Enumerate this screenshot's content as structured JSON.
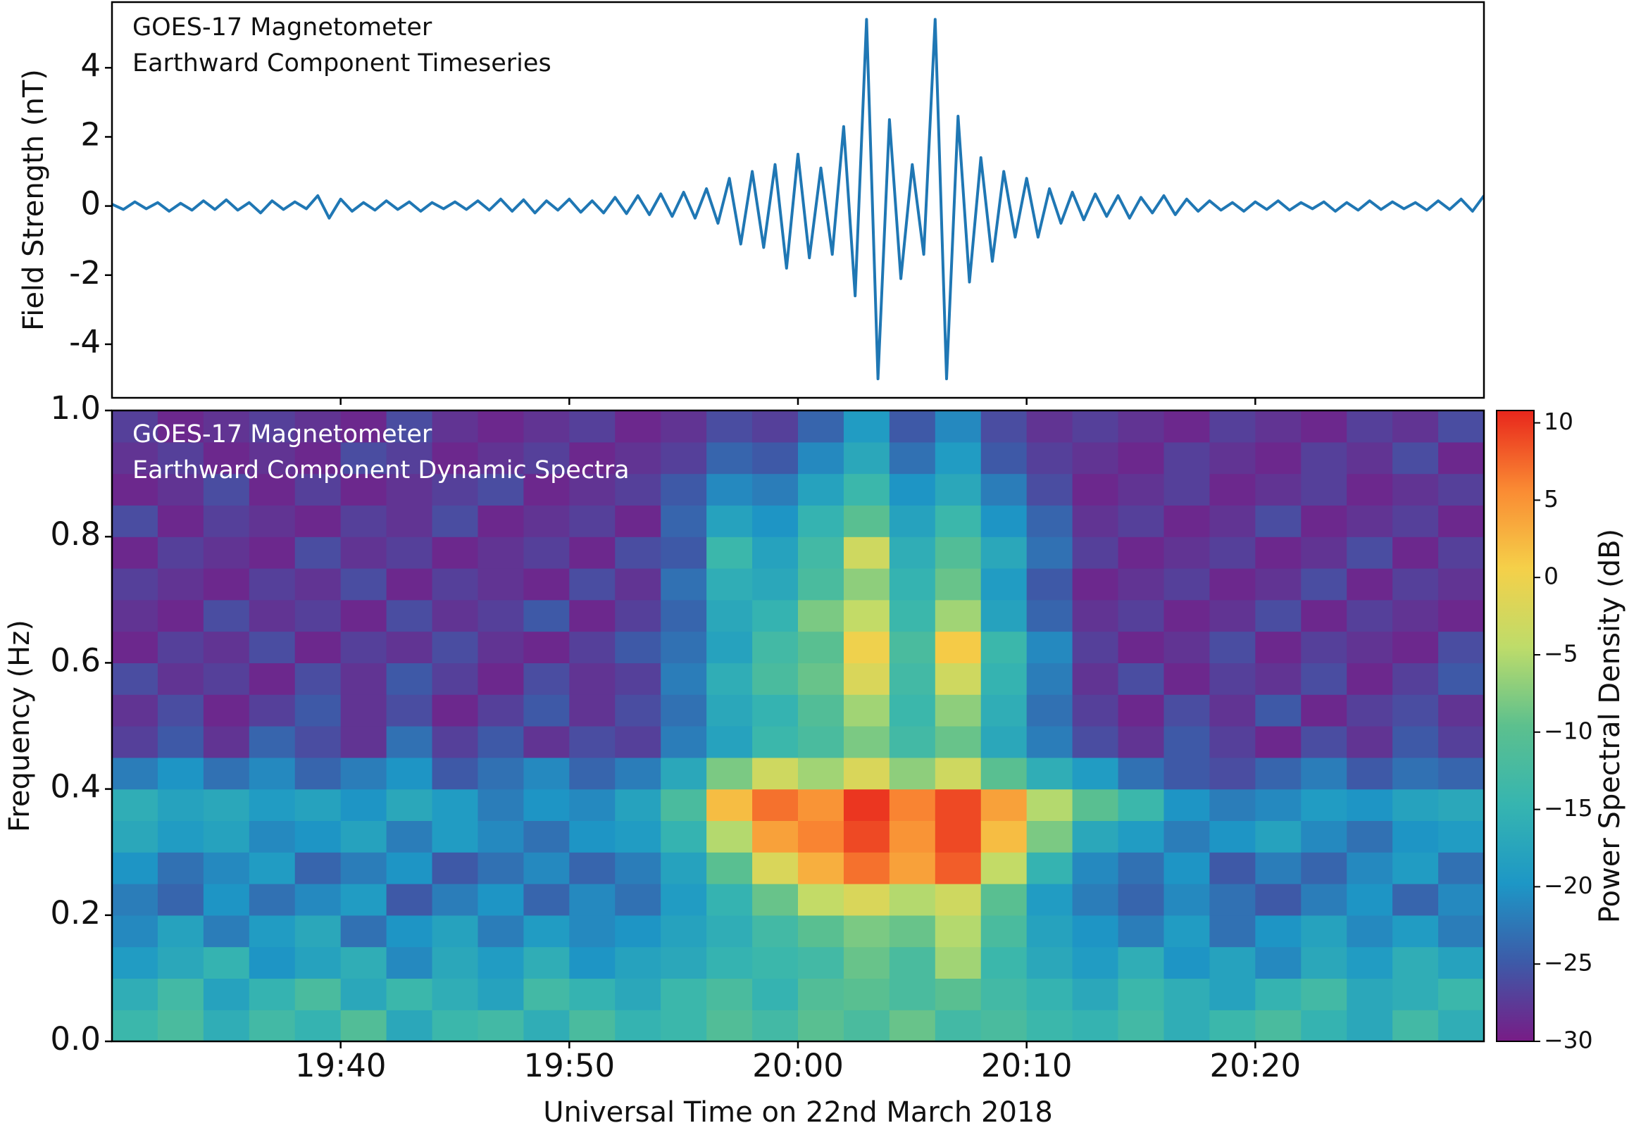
{
  "chart_data": [
    {
      "type": "line",
      "annotations": [
        "GOES-17 Magnetometer",
        "Earthward Component Timeseries"
      ],
      "ylabel": "Field Strength (nT)",
      "color": "#1f77b4",
      "xlim": [
        "19:30",
        "20:30"
      ],
      "xticks": [
        "19:40",
        "19:50",
        "20:00",
        "20:10",
        "20:20"
      ],
      "ylim": [
        -5.55,
        5.9
      ],
      "yticks": [
        -4,
        -2,
        0,
        2,
        4
      ],
      "x": [
        "19:30:00",
        "19:30:30",
        "19:31:00",
        "19:31:30",
        "19:32:00",
        "19:32:30",
        "19:33:00",
        "19:33:30",
        "19:34:00",
        "19:34:30",
        "19:35:00",
        "19:35:30",
        "19:36:00",
        "19:36:30",
        "19:37:00",
        "19:37:30",
        "19:38:00",
        "19:38:30",
        "19:39:00",
        "19:39:30",
        "19:40:00",
        "19:40:30",
        "19:41:00",
        "19:41:30",
        "19:42:00",
        "19:42:30",
        "19:43:00",
        "19:43:30",
        "19:44:00",
        "19:44:30",
        "19:45:00",
        "19:45:30",
        "19:46:00",
        "19:46:30",
        "19:47:00",
        "19:47:30",
        "19:48:00",
        "19:48:30",
        "19:49:00",
        "19:49:30",
        "19:50:00",
        "19:50:30",
        "19:51:00",
        "19:51:30",
        "19:52:00",
        "19:52:30",
        "19:53:00",
        "19:53:30",
        "19:54:00",
        "19:54:30",
        "19:55:00",
        "19:55:30",
        "19:56:00",
        "19:56:30",
        "19:57:00",
        "19:57:30",
        "19:58:00",
        "19:58:30",
        "19:59:00",
        "19:59:30",
        "20:00:00",
        "20:00:30",
        "20:01:00",
        "20:01:30",
        "20:02:00",
        "20:02:30",
        "20:03:00",
        "20:03:30",
        "20:04:00",
        "20:04:30",
        "20:05:00",
        "20:05:30",
        "20:06:00",
        "20:06:30",
        "20:07:00",
        "20:07:30",
        "20:08:00",
        "20:08:30",
        "20:09:00",
        "20:09:30",
        "20:10:00",
        "20:10:30",
        "20:11:00",
        "20:11:30",
        "20:12:00",
        "20:12:30",
        "20:13:00",
        "20:13:30",
        "20:14:00",
        "20:14:30",
        "20:15:00",
        "20:15:30",
        "20:16:00",
        "20:16:30",
        "20:17:00",
        "20:17:30",
        "20:18:00",
        "20:18:30",
        "20:19:00",
        "20:19:30",
        "20:20:00",
        "20:20:30",
        "20:21:00",
        "20:21:30",
        "20:22:00",
        "20:22:30",
        "20:23:00",
        "20:23:30",
        "20:24:00",
        "20:24:30",
        "20:25:00",
        "20:25:30",
        "20:26:00",
        "20:26:30",
        "20:27:00",
        "20:27:30",
        "20:28:00",
        "20:28:30",
        "20:29:00",
        "20:29:30",
        "20:30:00"
      ],
      "values": [
        0.05,
        -0.1,
        0.12,
        -0.08,
        0.1,
        -0.15,
        0.08,
        -0.12,
        0.15,
        -0.1,
        0.18,
        -0.12,
        0.1,
        -0.2,
        0.15,
        -0.1,
        0.12,
        -0.08,
        0.3,
        -0.35,
        0.2,
        -0.15,
        0.1,
        -0.12,
        0.15,
        -0.1,
        0.12,
        -0.15,
        0.1,
        -0.08,
        0.12,
        -0.1,
        0.15,
        -0.12,
        0.2,
        -0.15,
        0.18,
        -0.2,
        0.15,
        -0.12,
        0.2,
        -0.18,
        0.15,
        -0.2,
        0.25,
        -0.22,
        0.3,
        -0.25,
        0.35,
        -0.3,
        0.4,
        -0.35,
        0.5,
        -0.5,
        0.8,
        -1.1,
        1.0,
        -1.2,
        1.2,
        -1.8,
        1.5,
        -1.5,
        1.1,
        -1.4,
        2.3,
        -2.6,
        5.4,
        -5.0,
        2.5,
        -2.1,
        1.2,
        -1.4,
        5.4,
        -5.0,
        2.6,
        -2.2,
        1.4,
        -1.6,
        1.0,
        -0.9,
        0.8,
        -0.9,
        0.5,
        -0.5,
        0.4,
        -0.4,
        0.35,
        -0.3,
        0.3,
        -0.35,
        0.25,
        -0.2,
        0.3,
        -0.25,
        0.2,
        -0.15,
        0.15,
        -0.12,
        0.1,
        -0.15,
        0.12,
        -0.1,
        0.15,
        -0.12,
        0.1,
        -0.08,
        0.12,
        -0.15,
        0.1,
        -0.12,
        0.15,
        -0.1,
        0.12,
        -0.08,
        0.1,
        -0.12,
        0.15,
        -0.1,
        0.2,
        -0.15,
        0.3
      ]
    },
    {
      "type": "heatmap",
      "annotations": [
        "GOES-17 Magnetometer",
        "Earthward Component Dynamic Spectra"
      ],
      "ylabel": "Frequency (Hz)",
      "xlabel": "Universal Time on 22nd March 2018",
      "colorbar_label": "Power Spectral Density (dB)",
      "colormap": [
        "#781c86",
        "#3d5aa8",
        "#1d97c6",
        "#36b5b0",
        "#5cc08e",
        "#bedc6a",
        "#f5d049",
        "#fa8a33",
        "#e8261c"
      ],
      "xlim": [
        "19:30",
        "20:30"
      ],
      "xticks": [
        "19:40",
        "19:50",
        "20:00",
        "20:10",
        "20:20"
      ],
      "ylim": [
        0,
        1
      ],
      "yticks": [
        {
          "value": 0,
          "label": "0.0"
        },
        0.2,
        0.4,
        0.6,
        0.8,
        {
          "value": 1,
          "label": "1.0"
        }
      ],
      "zlim": [
        -30,
        10.8
      ],
      "zticks": [
        {
          "value": -30,
          "label": "−30"
        },
        {
          "value": -25,
          "label": "−25"
        },
        {
          "value": -20,
          "label": "−20"
        },
        {
          "value": -15,
          "label": "−15"
        },
        {
          "value": -10,
          "label": "−10"
        },
        {
          "value": -5,
          "label": "−5"
        },
        0,
        5,
        10
      ],
      "x": [
        "19:31",
        "19:33",
        "19:35",
        "19:37",
        "19:39",
        "19:41",
        "19:43",
        "19:45",
        "19:47",
        "19:49",
        "19:51",
        "19:53",
        "19:55",
        "19:57",
        "19:59",
        "20:01",
        "20:03",
        "20:05",
        "20:07",
        "20:09",
        "20:11",
        "20:13",
        "20:15",
        "20:17",
        "20:19",
        "20:21",
        "20:23",
        "20:25",
        "20:27",
        "20:29"
      ],
      "y": [
        0.025,
        0.075,
        0.125,
        0.175,
        0.225,
        0.275,
        0.325,
        0.375,
        0.425,
        0.475,
        0.525,
        0.575,
        0.625,
        0.675,
        0.725,
        0.775,
        0.825,
        0.875,
        0.925,
        0.975
      ],
      "z": [
        [
          -14,
          -12,
          -16,
          -13,
          -15,
          -11,
          -17,
          -14,
          -13,
          -16,
          -12,
          -15,
          -14,
          -11,
          -13,
          -10,
          -12,
          -9,
          -13,
          -12,
          -14,
          -15,
          -13,
          -16,
          -14,
          -12,
          -15,
          -17,
          -13,
          -16
        ],
        [
          -16,
          -13,
          -18,
          -15,
          -12,
          -17,
          -14,
          -16,
          -18,
          -13,
          -15,
          -17,
          -14,
          -12,
          -15,
          -11,
          -10,
          -12,
          -10,
          -13,
          -15,
          -17,
          -14,
          -16,
          -18,
          -15,
          -13,
          -17,
          -16,
          -14
        ],
        [
          -19,
          -17,
          -15,
          -20,
          -18,
          -16,
          -21,
          -17,
          -19,
          -16,
          -20,
          -18,
          -17,
          -15,
          -14,
          -13,
          -9,
          -12,
          -6,
          -14,
          -17,
          -19,
          -16,
          -20,
          -18,
          -21,
          -17,
          -19,
          -16,
          -18
        ],
        [
          -21,
          -18,
          -22,
          -19,
          -17,
          -23,
          -20,
          -18,
          -22,
          -19,
          -21,
          -20,
          -18,
          -16,
          -13,
          -10,
          -8,
          -9,
          -5,
          -12,
          -18,
          -20,
          -22,
          -19,
          -23,
          -20,
          -18,
          -21,
          -19,
          -22
        ],
        [
          -22,
          -24,
          -20,
          -23,
          -21,
          -19,
          -25,
          -22,
          -20,
          -24,
          -21,
          -23,
          -19,
          -15,
          -9,
          -4,
          -2,
          -5,
          -3,
          -10,
          -19,
          -22,
          -24,
          -21,
          -23,
          -25,
          -22,
          -20,
          -24,
          -21
        ],
        [
          -20,
          -23,
          -21,
          -19,
          -24,
          -22,
          -20,
          -25,
          -23,
          -21,
          -24,
          -22,
          -18,
          -10,
          -2,
          3,
          7,
          4,
          8,
          -4,
          -15,
          -21,
          -23,
          -20,
          -25,
          -22,
          -24,
          -21,
          -19,
          -23
        ],
        [
          -17,
          -19,
          -18,
          -21,
          -20,
          -18,
          -22,
          -19,
          -21,
          -23,
          -20,
          -19,
          -15,
          -5,
          4,
          6,
          9,
          5,
          9,
          2,
          -8,
          -17,
          -19,
          -22,
          -20,
          -18,
          -21,
          -23,
          -20,
          -19
        ],
        [
          -16,
          -18,
          -17,
          -19,
          -18,
          -20,
          -17,
          -19,
          -22,
          -20,
          -21,
          -18,
          -12,
          2,
          7,
          5,
          10,
          6,
          9,
          4,
          -5,
          -10,
          -14,
          -20,
          -22,
          -21,
          -19,
          -20,
          -18,
          -17
        ],
        [
          -22,
          -20,
          -23,
          -21,
          -24,
          -22,
          -20,
          -25,
          -23,
          -21,
          -24,
          -22,
          -17,
          -8,
          -3,
          -6,
          -2,
          -7,
          -3,
          -10,
          -16,
          -19,
          -23,
          -25,
          -26,
          -24,
          -22,
          -25,
          -23,
          -24
        ],
        [
          -27,
          -25,
          -28,
          -24,
          -26,
          -28,
          -23,
          -27,
          -25,
          -28,
          -26,
          -27,
          -22,
          -18,
          -14,
          -12,
          -8,
          -13,
          -9,
          -17,
          -22,
          -26,
          -28,
          -25,
          -27,
          -29,
          -26,
          -28,
          -25,
          -27
        ],
        [
          -28,
          -26,
          -29,
          -27,
          -25,
          -28,
          -26,
          -29,
          -27,
          -25,
          -28,
          -26,
          -23,
          -17,
          -15,
          -11,
          -6,
          -14,
          -7,
          -16,
          -23,
          -27,
          -29,
          -26,
          -28,
          -25,
          -29,
          -27,
          -26,
          -28
        ],
        [
          -26,
          -28,
          -27,
          -29,
          -26,
          -28,
          -25,
          -27,
          -29,
          -26,
          -28,
          -27,
          -22,
          -16,
          -12,
          -9,
          -2,
          -13,
          -3,
          -15,
          -22,
          -28,
          -26,
          -29,
          -27,
          -28,
          -26,
          -29,
          -27,
          -25
        ],
        [
          -29,
          -27,
          -28,
          -26,
          -29,
          -27,
          -28,
          -26,
          -28,
          -29,
          -27,
          -25,
          -23,
          -18,
          -13,
          -10,
          0,
          -12,
          1,
          -14,
          -21,
          -27,
          -29,
          -28,
          -26,
          -29,
          -27,
          -28,
          -29,
          -26
        ],
        [
          -28,
          -29,
          -26,
          -28,
          -27,
          -29,
          -26,
          -28,
          -27,
          -25,
          -29,
          -27,
          -24,
          -17,
          -15,
          -8,
          -4,
          -14,
          -6,
          -18,
          -24,
          -28,
          -27,
          -29,
          -28,
          -26,
          -29,
          -27,
          -28,
          -29
        ],
        [
          -27,
          -28,
          -29,
          -27,
          -28,
          -26,
          -29,
          -27,
          -28,
          -29,
          -26,
          -28,
          -23,
          -16,
          -17,
          -12,
          -7,
          -15,
          -9,
          -19,
          -25,
          -29,
          -28,
          -27,
          -29,
          -28,
          -26,
          -29,
          -27,
          -28
        ],
        [
          -29,
          -27,
          -28,
          -29,
          -26,
          -28,
          -27,
          -29,
          -28,
          -27,
          -29,
          -26,
          -25,
          -14,
          -18,
          -13,
          -3,
          -16,
          -11,
          -17,
          -23,
          -27,
          -29,
          -28,
          -27,
          -29,
          -28,
          -26,
          -29,
          -27
        ],
        [
          -26,
          -29,
          -27,
          -28,
          -29,
          -27,
          -28,
          -26,
          -29,
          -28,
          -27,
          -29,
          -24,
          -18,
          -20,
          -15,
          -10,
          -18,
          -14,
          -20,
          -24,
          -28,
          -27,
          -29,
          -28,
          -26,
          -29,
          -28,
          -27,
          -29
        ],
        [
          -29,
          -28,
          -26,
          -29,
          -27,
          -29,
          -28,
          -27,
          -26,
          -29,
          -28,
          -27,
          -25,
          -21,
          -22,
          -18,
          -14,
          -20,
          -17,
          -22,
          -26,
          -29,
          -28,
          -27,
          -29,
          -28,
          -27,
          -29,
          -28,
          -27
        ],
        [
          -28,
          -27,
          -29,
          -28,
          -29,
          -26,
          -27,
          -29,
          -28,
          -27,
          -29,
          -28,
          -27,
          -24,
          -25,
          -21,
          -17,
          -23,
          -19,
          -25,
          -27,
          -28,
          -29,
          -27,
          -28,
          -29,
          -27,
          -28,
          -26,
          -29
        ],
        [
          -27,
          -29,
          -28,
          -27,
          -28,
          -29,
          -26,
          -28,
          -29,
          -28,
          -27,
          -29,
          -28,
          -26,
          -27,
          -24,
          -19,
          -25,
          -21,
          -26,
          -28,
          -27,
          -28,
          -29,
          -27,
          -28,
          -29,
          -27,
          -28,
          -26
        ]
      ]
    }
  ]
}
